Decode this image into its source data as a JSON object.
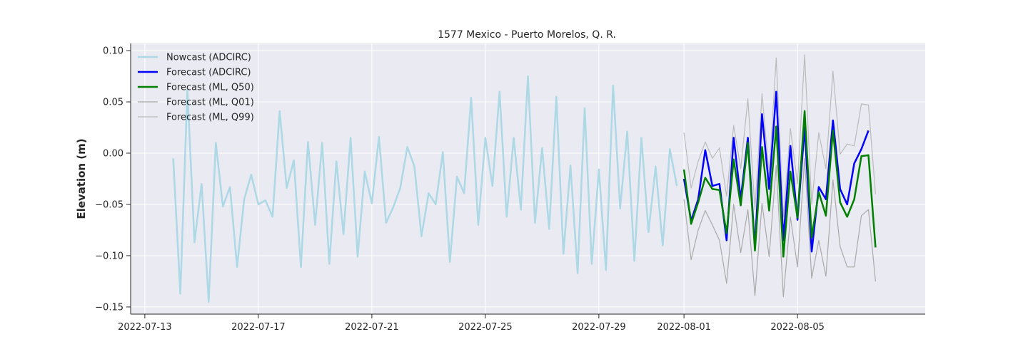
{
  "chart_data": {
    "type": "line",
    "title": "1577 Mexico - Puerto Morelos, Q. R.",
    "xlabel": "",
    "ylabel": "Elevation (m)",
    "xlim": [
      "2022-07-12T12:00",
      "2022-08-09T12:00"
    ],
    "ylim": [
      -0.157,
      0.107
    ],
    "x_ticks": [
      "2022-07-13",
      "2022-07-17",
      "2022-07-21",
      "2022-07-25",
      "2022-07-29",
      "2022-08-01",
      "2022-08-05"
    ],
    "y_ticks": [
      0.1,
      0.05,
      0.0,
      -0.05,
      -0.1,
      -0.15
    ],
    "y_tick_labels": [
      "0.10",
      "0.05",
      "0.00",
      "−0.05",
      "−0.10",
      "−0.15"
    ],
    "grid": true,
    "legend_position": "top-left",
    "series": [
      {
        "name": "Nowcast (ADCIRC)",
        "color": "#add8e6",
        "width": 2.5,
        "start": "2022-07-14T00:00",
        "step_hours": 6,
        "values": [
          -0.005,
          -0.137,
          0.062,
          -0.087,
          -0.03,
          -0.145,
          0.01,
          -0.052,
          -0.033,
          -0.111,
          -0.045,
          -0.021,
          -0.05,
          -0.046,
          -0.062,
          0.041,
          -0.034,
          -0.007,
          -0.111,
          0.011,
          -0.07,
          0.01,
          -0.108,
          -0.008,
          -0.079,
          0.015,
          -0.101,
          -0.018,
          -0.049,
          0.016,
          -0.068,
          -0.053,
          -0.034,
          0.006,
          -0.013,
          -0.081,
          -0.039,
          -0.05,
          0.001,
          -0.106,
          -0.023,
          -0.039,
          0.054,
          -0.07,
          0.015,
          -0.032,
          0.06,
          -0.062,
          0.015,
          -0.055,
          0.075,
          -0.068,
          0.005,
          -0.074,
          0.055,
          -0.098,
          -0.012,
          -0.117,
          0.044,
          -0.108,
          -0.016,
          -0.114,
          0.066,
          -0.054,
          0.021,
          -0.105,
          0.015,
          -0.077,
          -0.013,
          -0.09,
          0.004,
          -0.032
        ]
      },
      {
        "name": "Forecast (ADCIRC)",
        "color": "#0000ff",
        "width": 2.5,
        "start": "2022-08-01T00:00",
        "step_hours": 6,
        "values": [
          -0.025,
          -0.066,
          -0.045,
          0.003,
          -0.032,
          -0.03,
          -0.085,
          0.015,
          -0.045,
          0.015,
          -0.092,
          0.038,
          -0.035,
          0.06,
          -0.085,
          0.007,
          -0.065,
          0.025,
          -0.096,
          -0.033,
          -0.045,
          0.032,
          -0.035,
          -0.05,
          -0.01,
          0.004,
          0.022
        ]
      },
      {
        "name": "Forecast (ML, Q50)",
        "color": "#008000",
        "width": 2.5,
        "start": "2022-08-01T00:00",
        "step_hours": 6,
        "values": [
          -0.016,
          -0.069,
          -0.048,
          -0.024,
          -0.035,
          -0.036,
          -0.078,
          -0.006,
          -0.051,
          0.01,
          -0.095,
          0.006,
          -0.056,
          0.026,
          -0.101,
          -0.018,
          -0.063,
          0.041,
          -0.082,
          -0.038,
          -0.061,
          0.022,
          -0.048,
          -0.062,
          -0.045,
          -0.003,
          -0.002,
          -0.092
        ]
      },
      {
        "name": "Forecast (ML, Q01)",
        "color": "#aaaaaa",
        "width": 1.2,
        "start": "2022-08-01T00:00",
        "step_hours": 6,
        "values": [
          -0.045,
          -0.104,
          -0.075,
          -0.056,
          -0.07,
          -0.085,
          -0.127,
          -0.05,
          -0.097,
          -0.055,
          -0.139,
          -0.049,
          -0.101,
          -0.012,
          -0.14,
          -0.062,
          -0.111,
          -0.005,
          -0.122,
          -0.085,
          -0.12,
          -0.026,
          -0.091,
          -0.111,
          -0.111,
          -0.061,
          -0.055,
          -0.125
        ]
      },
      {
        "name": "Forecast (ML, Q99)",
        "color": "#bbbbbb",
        "width": 1.2,
        "start": "2022-08-01T00:00",
        "step_hours": 6,
        "values": [
          0.02,
          -0.034,
          -0.008,
          0.011,
          -0.005,
          0.005,
          -0.042,
          0.027,
          -0.015,
          0.053,
          -0.055,
          0.058,
          -0.021,
          0.093,
          -0.062,
          0.024,
          -0.03,
          0.096,
          -0.05,
          0.02,
          -0.015,
          0.08,
          -0.001,
          0.009,
          0.007,
          0.048,
          0.047,
          -0.04
        ]
      }
    ]
  }
}
